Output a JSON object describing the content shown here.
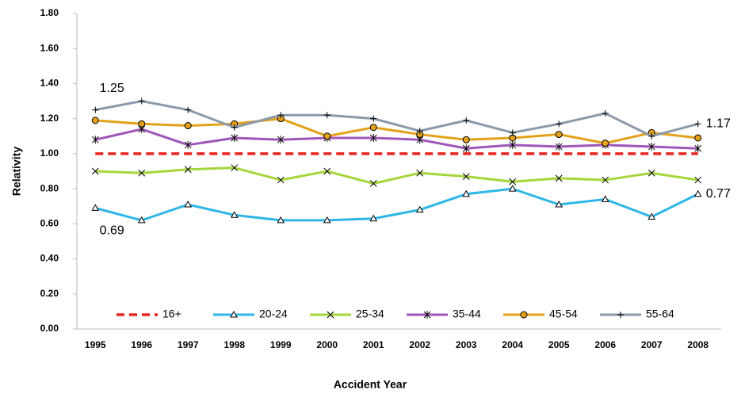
{
  "chart_data": {
    "type": "line",
    "x_label": "Accident Year",
    "y_label": "Relativity",
    "categories": [
      "1995",
      "1996",
      "1997",
      "1998",
      "1999",
      "2000",
      "2001",
      "2002",
      "2003",
      "2004",
      "2005",
      "2006",
      "2007",
      "2008"
    ],
    "ylim": [
      0,
      1.8
    ],
    "yticks": [
      {
        "value": 0,
        "label": "0.00"
      },
      {
        "value": 0.2,
        "label": "0.20"
      },
      {
        "value": 0.4,
        "label": "0.40"
      },
      {
        "value": 0.6,
        "label": "0.60"
      },
      {
        "value": 0.8,
        "label": "0.80"
      },
      {
        "value": 1,
        "label": "1.00"
      },
      {
        "value": 1.2,
        "label": "1.20"
      },
      {
        "value": 1.4,
        "label": "1.40"
      },
      {
        "value": 1.6,
        "label": "1.60"
      },
      {
        "value": 1.8,
        "label": "1.80"
      }
    ],
    "grid": false,
    "legend": "bottom",
    "series": [
      {
        "name": "16+",
        "color": "#e8251f",
        "dash": true,
        "marker": "none",
        "values": [
          1,
          1,
          1,
          1,
          1,
          1,
          1,
          1,
          1,
          1,
          1,
          1,
          1,
          1
        ]
      },
      {
        "name": "20-24",
        "color": "#2eb6e8",
        "marker": "triangle",
        "values": [
          0.69,
          0.62,
          0.71,
          0.65,
          0.62,
          0.62,
          0.63,
          0.68,
          0.77,
          0.8,
          0.71,
          0.74,
          0.64,
          0.77
        ],
        "value_labels": [
          "0.69",
          null,
          null,
          null,
          null,
          null,
          null,
          null,
          null,
          null,
          null,
          null,
          null,
          "0.77"
        ]
      },
      {
        "name": "25-34",
        "color": "#a5d63a",
        "marker": "x",
        "values": [
          0.9,
          0.89,
          0.91,
          0.92,
          0.85,
          0.9,
          0.83,
          0.89,
          0.87,
          0.84,
          0.86,
          0.85,
          0.89,
          0.85
        ]
      },
      {
        "name": "35-44",
        "color": "#9e57b8",
        "marker": "star",
        "values": [
          1.08,
          1.14,
          1.05,
          1.09,
          1.08,
          1.09,
          1.09,
          1.08,
          1.03,
          1.05,
          1.04,
          1.05,
          1.04,
          1.03
        ]
      },
      {
        "name": "45-54",
        "color": "#e4a11b",
        "marker": "circle",
        "values": [
          1.19,
          1.17,
          1.16,
          1.17,
          1.2,
          1.1,
          1.15,
          1.11,
          1.08,
          1.09,
          1.11,
          1.06,
          1.12,
          1.09
        ]
      },
      {
        "name": "55-64",
        "color": "#8a9aab",
        "marker": "plus",
        "values": [
          1.25,
          1.3,
          1.25,
          1.15,
          1.22,
          1.22,
          1.2,
          1.13,
          1.19,
          1.12,
          1.17,
          1.23,
          1.1,
          1.17
        ],
        "value_labels": [
          "1.25",
          null,
          null,
          null,
          null,
          null,
          null,
          null,
          null,
          null,
          null,
          null,
          null,
          "1.17"
        ]
      }
    ]
  }
}
